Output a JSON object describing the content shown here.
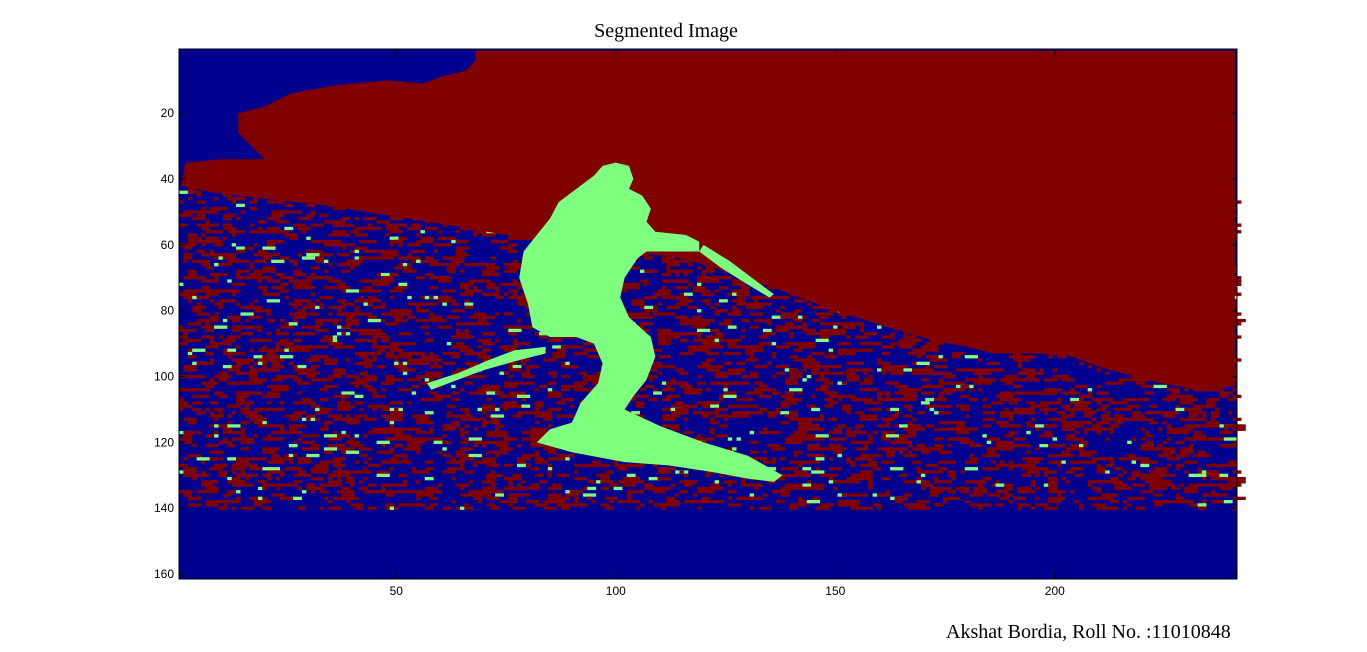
{
  "figure": {
    "caption": "Akshat Bordia, Roll No. :11010848"
  },
  "chart_data": {
    "type": "heatmap",
    "title": "Segmented Image",
    "xlabel": "",
    "ylabel": "",
    "xlim": [
      0.5,
      241.5
    ],
    "ylim": [
      0.5,
      161.5
    ],
    "y_reversed": true,
    "xticks": [
      50,
      100,
      150,
      200
    ],
    "yticks": [
      20,
      40,
      60,
      80,
      100,
      120,
      140,
      160
    ],
    "grid": false,
    "legend": "none",
    "classes": [
      {
        "id": 1,
        "color": "#00008f"
      },
      {
        "id": 2,
        "color": "#7fff7f"
      },
      {
        "id": 3,
        "color": "#800000"
      }
    ],
    "background_class": 1,
    "regions": [
      {
        "class": 3,
        "polygon": [
          [
            68,
            1
          ],
          [
            241,
            1
          ],
          [
            241,
            103
          ],
          [
            232,
            104
          ],
          [
            224,
            102
          ],
          [
            218,
            100
          ],
          [
            210,
            97
          ],
          [
            204,
            94
          ],
          [
            196,
            93
          ],
          [
            186,
            93
          ],
          [
            180,
            91
          ],
          [
            172,
            89
          ],
          [
            162,
            85
          ],
          [
            150,
            80
          ],
          [
            138,
            74
          ],
          [
            125,
            68
          ],
          [
            115,
            64
          ],
          [
            102,
            62
          ],
          [
            88,
            60
          ],
          [
            75,
            57
          ],
          [
            62,
            54
          ],
          [
            48,
            51
          ],
          [
            34,
            48
          ],
          [
            20,
            46
          ],
          [
            8,
            44
          ],
          [
            1,
            42
          ],
          [
            2,
            35
          ],
          [
            10,
            34
          ],
          [
            20,
            34
          ],
          [
            14,
            26
          ],
          [
            14,
            20
          ],
          [
            20,
            18
          ],
          [
            26,
            14
          ],
          [
            34,
            12
          ],
          [
            40,
            11
          ],
          [
            48,
            10
          ],
          [
            56,
            11
          ],
          [
            60,
            9
          ],
          [
            66,
            7
          ],
          [
            68,
            4
          ]
        ]
      },
      {
        "class": 2,
        "polygon": [
          [
            97,
            36
          ],
          [
            100,
            35
          ],
          [
            103,
            36
          ],
          [
            104,
            40
          ],
          [
            103,
            43
          ],
          [
            106,
            45
          ],
          [
            108,
            49
          ],
          [
            107,
            53
          ],
          [
            109,
            56
          ],
          [
            116,
            57
          ],
          [
            119,
            59
          ],
          [
            119,
            62
          ],
          [
            114,
            62
          ],
          [
            107,
            62
          ],
          [
            105,
            64
          ],
          [
            102,
            70
          ],
          [
            101,
            76
          ],
          [
            103,
            82
          ],
          [
            108,
            88
          ],
          [
            109,
            94
          ],
          [
            107,
            101
          ],
          [
            104,
            106
          ],
          [
            102,
            110
          ],
          [
            110,
            115
          ],
          [
            120,
            120
          ],
          [
            130,
            124
          ],
          [
            138,
            130
          ],
          [
            136,
            132
          ],
          [
            130,
            131
          ],
          [
            122,
            129
          ],
          [
            112,
            127
          ],
          [
            102,
            126
          ],
          [
            90,
            123
          ],
          [
            82,
            120
          ],
          [
            85,
            116
          ],
          [
            90,
            114
          ],
          [
            92,
            108
          ],
          [
            96,
            102
          ],
          [
            97,
            96
          ],
          [
            95,
            90
          ],
          [
            91,
            88
          ],
          [
            85,
            88
          ],
          [
            81,
            85
          ],
          [
            80,
            78
          ],
          [
            78,
            70
          ],
          [
            79,
            62
          ],
          [
            82,
            57
          ],
          [
            85,
            52
          ],
          [
            87,
            47
          ],
          [
            92,
            42
          ],
          [
            95,
            39
          ]
        ]
      },
      {
        "class": 2,
        "polygon": [
          [
            77,
            92
          ],
          [
            84,
            91
          ],
          [
            84,
            93
          ],
          [
            78,
            95
          ],
          [
            70,
            98
          ],
          [
            64,
            101
          ],
          [
            58,
            104
          ],
          [
            57,
            102
          ],
          [
            64,
            99
          ],
          [
            71,
            95
          ]
        ]
      },
      {
        "class": 2,
        "polygon": [
          [
            120,
            60
          ],
          [
            126,
            65
          ],
          [
            132,
            71
          ],
          [
            136,
            75
          ],
          [
            135,
            76
          ],
          [
            130,
            72
          ],
          [
            124,
            67
          ],
          [
            119,
            62
          ]
        ]
      }
    ],
    "speckle_rows": [
      42,
      140
    ],
    "speckle_seed": 11010848
  }
}
